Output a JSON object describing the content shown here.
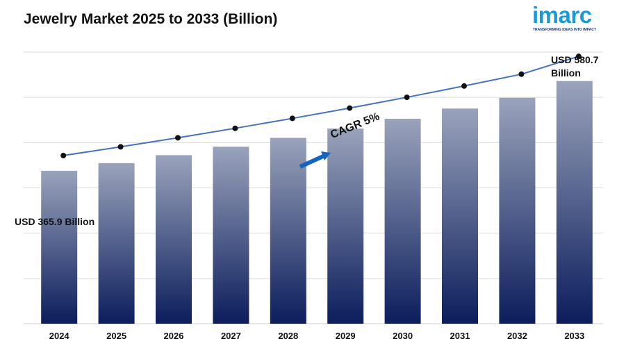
{
  "title": "Jewelry Market 2025 to 2033 (Billion)",
  "logo": {
    "wordmark": "imarc",
    "tagline": "TRANSFORMING IDEAS INTO IMPACT"
  },
  "chart_data": {
    "type": "bar",
    "title": "Jewelry Market 2025 to 2033 (Billion)",
    "categories": [
      "2024",
      "2025",
      "2026",
      "2027",
      "2028",
      "2029",
      "2030",
      "2031",
      "2032",
      "2033"
    ],
    "series": [
      {
        "type": "bar",
        "values": [
          365.9,
          384.2,
          403.4,
          423.6,
          444.8,
          467.0,
          490.3,
          514.9,
          540.6,
          580.7
        ]
      },
      {
        "type": "line",
        "values": [
          365.9,
          384.2,
          403.4,
          423.6,
          444.8,
          467.0,
          490.3,
          514.9,
          540.6,
          580.7
        ]
      }
    ],
    "ylim": [
      0,
      650
    ],
    "grid": true,
    "colors": {
      "bar_top": "#9aa3bb",
      "bar_bottom": "#0b1d5c",
      "line": "#4472c4",
      "marker": "#111111",
      "arrow": "#1565c0",
      "grid": "#d9d9d9"
    },
    "annotations": {
      "first_value": "USD 365.9 Billion",
      "last_value_line1": "USD 580.7",
      "last_value_line2": "Billion",
      "cagr": "CAGR 5%"
    }
  }
}
